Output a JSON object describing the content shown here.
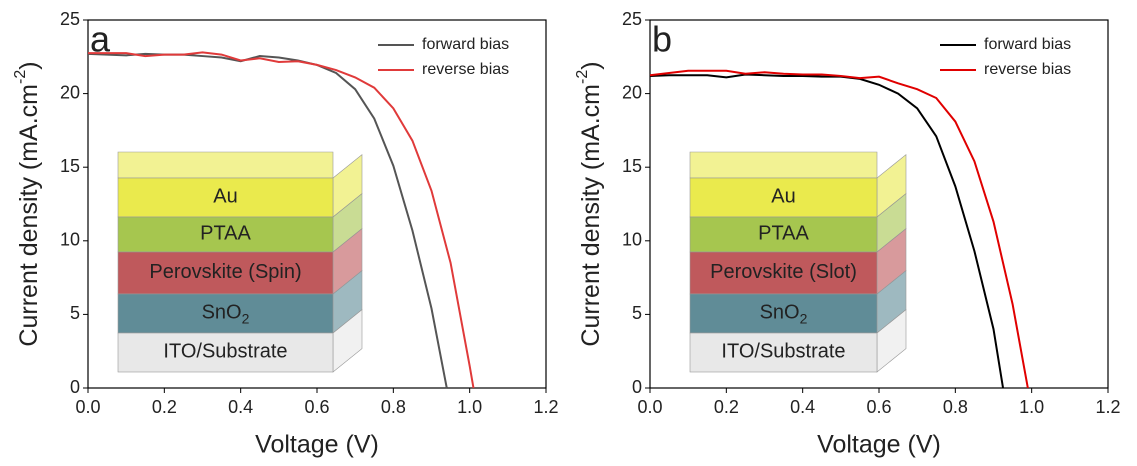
{
  "chart_data": [
    {
      "type": "line",
      "panel_label": "a",
      "x_label": "Voltage (V)",
      "y_label": [
        "Current density (mA.cm",
        "-2",
        ")"
      ],
      "xlim": [
        0,
        1.2
      ],
      "xticks": [
        {
          "value": 0,
          "label": "0.0"
        },
        0.2,
        0.4,
        0.6,
        0.8,
        {
          "value": 1,
          "label": "1.0"
        },
        1.2
      ],
      "ylim": [
        0,
        25
      ],
      "yticks": [
        0,
        5,
        10,
        15,
        20,
        25
      ],
      "legend": "upper right",
      "series": [
        {
          "name": "forward bias",
          "color": "#555555",
          "x": [
            0,
            0.05,
            0.1,
            0.15,
            0.2,
            0.25,
            0.3,
            0.35,
            0.4,
            0.45,
            0.5,
            0.55,
            0.6,
            0.65,
            0.7,
            0.75,
            0.8,
            0.85,
            0.9,
            0.94
          ],
          "values": [
            22.7,
            22.65,
            22.6,
            22.7,
            22.65,
            22.65,
            22.55,
            22.45,
            22.2,
            22.55,
            22.45,
            22.25,
            21.95,
            21.4,
            20.3,
            18.3,
            15.1,
            10.7,
            5.4,
            0
          ]
        },
        {
          "name": "reverse bias",
          "color": "#e03a3a",
          "x": [
            0,
            0.05,
            0.1,
            0.15,
            0.2,
            0.25,
            0.3,
            0.35,
            0.4,
            0.45,
            0.5,
            0.55,
            0.6,
            0.65,
            0.7,
            0.75,
            0.8,
            0.85,
            0.9,
            0.95,
            1.0,
            1.01
          ],
          "values": [
            22.75,
            22.75,
            22.75,
            22.55,
            22.65,
            22.65,
            22.8,
            22.65,
            22.25,
            22.4,
            22.15,
            22.2,
            21.95,
            21.6,
            21.1,
            20.4,
            19.0,
            16.8,
            13.4,
            8.5,
            1.5,
            0
          ]
        }
      ],
      "inset": {
        "layers": [
          {
            "name": "Au",
            "color": "#e8e83a"
          },
          {
            "name": "PTAA",
            "color": "#9cc03c"
          },
          {
            "name": "Perovskite (Spin)",
            "color": "#b8474a"
          },
          {
            "name": "SnO",
            "sub": "2",
            "color": "#4f7f8c"
          },
          {
            "name": "ITO/Substrate",
            "color": "#e6e6e6"
          }
        ]
      }
    },
    {
      "type": "line",
      "panel_label": "b",
      "x_label": "Voltage (V)",
      "y_label": [
        "Current density (mA.cm",
        "-2",
        ")"
      ],
      "xlim": [
        0,
        1.2
      ],
      "xticks": [
        {
          "value": 0,
          "label": "0.0"
        },
        0.2,
        0.4,
        0.6,
        0.8,
        {
          "value": 1,
          "label": "1.0"
        },
        1.2
      ],
      "ylim": [
        0,
        25
      ],
      "yticks": [
        0,
        5,
        10,
        15,
        20,
        25
      ],
      "legend": "upper right",
      "series": [
        {
          "name": "forward bias",
          "color": "#000000",
          "x": [
            0,
            0.05,
            0.1,
            0.15,
            0.2,
            0.25,
            0.3,
            0.35,
            0.4,
            0.45,
            0.5,
            0.55,
            0.6,
            0.65,
            0.7,
            0.75,
            0.8,
            0.85,
            0.9,
            0.925
          ],
          "values": [
            21.2,
            21.25,
            21.25,
            21.25,
            21.1,
            21.3,
            21.25,
            21.2,
            21.2,
            21.15,
            21.15,
            21.0,
            20.6,
            20.0,
            19.0,
            17.1,
            13.7,
            9.3,
            4.0,
            0
          ]
        },
        {
          "name": "reverse bias",
          "color": "#e00000",
          "x": [
            0,
            0.05,
            0.1,
            0.15,
            0.2,
            0.25,
            0.3,
            0.35,
            0.4,
            0.45,
            0.5,
            0.55,
            0.6,
            0.65,
            0.7,
            0.75,
            0.8,
            0.85,
            0.9,
            0.95,
            0.99
          ],
          "values": [
            21.25,
            21.4,
            21.55,
            21.55,
            21.55,
            21.35,
            21.45,
            21.35,
            21.3,
            21.3,
            21.2,
            21.05,
            21.15,
            20.7,
            20.3,
            19.7,
            18.1,
            15.4,
            11.3,
            5.7,
            0
          ]
        }
      ],
      "inset": {
        "layers": [
          {
            "name": "Au",
            "color": "#e8e83a"
          },
          {
            "name": "PTAA",
            "color": "#9cc03c"
          },
          {
            "name": "Perovskite (Slot)",
            "color": "#b8474a"
          },
          {
            "name": "SnO",
            "sub": "2",
            "color": "#4f7f8c"
          },
          {
            "name": "ITO/Substrate",
            "color": "#e6e6e6"
          }
        ]
      }
    }
  ]
}
